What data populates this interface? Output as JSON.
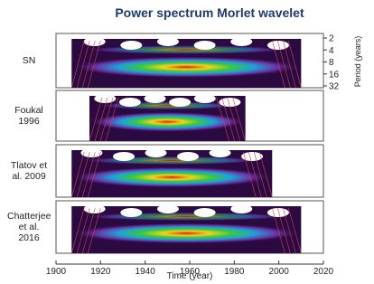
{
  "chart_data": {
    "type": "heatmap",
    "title": "Power spectrum Morlet wavelet",
    "xlabel": "Time (year)",
    "ylabel": "Period (years)",
    "xlim": [
      1900,
      2020
    ],
    "xticks": [
      1900,
      1920,
      1940,
      1960,
      1980,
      2000,
      2020
    ],
    "ylim": [
      2,
      32
    ],
    "yticks": [
      2,
      4,
      8,
      16,
      32
    ],
    "ylog": true,
    "y_inverted": true,
    "series": [
      {
        "name": "SN",
        "span": [
          1907,
          2010
        ]
      },
      {
        "name": "Foukal 1996",
        "span": [
          1915,
          1985
        ]
      },
      {
        "name": "Tlatov et al. 2009",
        "span": [
          1907,
          1997
        ]
      },
      {
        "name": "Chatterjee et al. 2016",
        "span": [
          1907,
          2010
        ]
      }
    ]
  }
}
